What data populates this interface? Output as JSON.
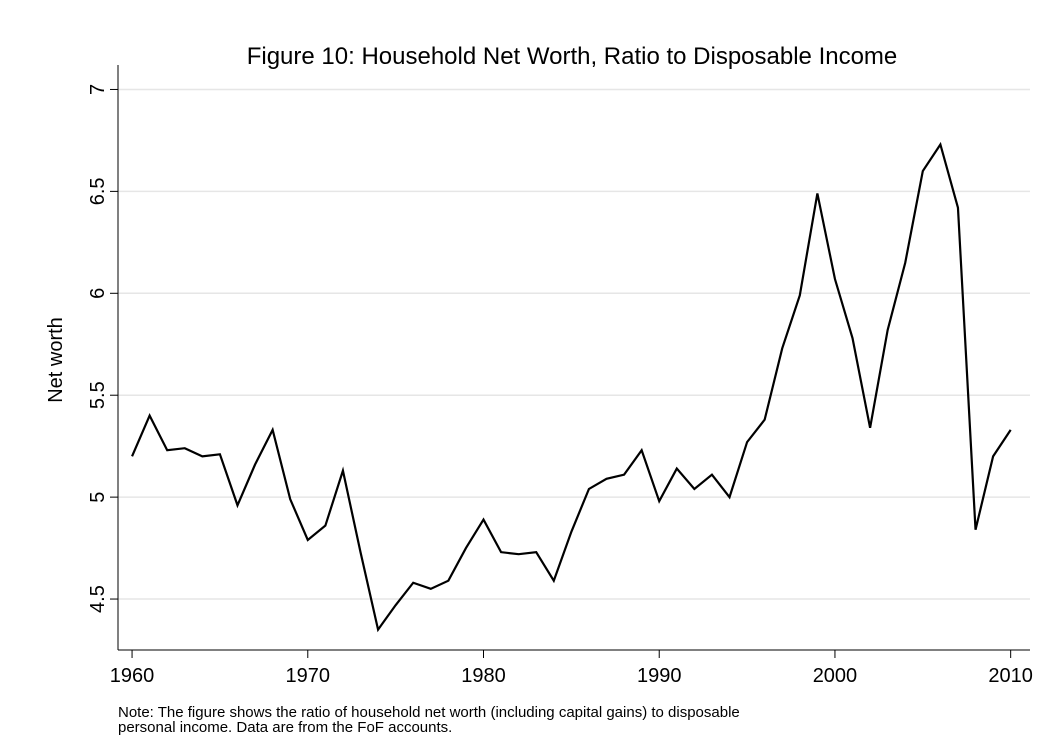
{
  "chart_data": {
    "type": "line",
    "title": "Figure 10: Household Net Worth, Ratio to Disposable Income",
    "y_label": "Net worth",
    "note": [
      "Note: The figure shows the ratio of household net worth (including capital gains) to disposable",
      "personal income. Data are from the FoF accounts."
    ],
    "x": [
      1960,
      1961,
      1962,
      1963,
      1964,
      1965,
      1966,
      1967,
      1968,
      1969,
      1970,
      1971,
      1972,
      1973,
      1974,
      1975,
      1976,
      1977,
      1978,
      1979,
      1980,
      1981,
      1982,
      1983,
      1984,
      1985,
      1986,
      1987,
      1988,
      1989,
      1990,
      1991,
      1992,
      1993,
      1994,
      1995,
      1996,
      1997,
      1998,
      1999,
      2000,
      2001,
      2002,
      2003,
      2004,
      2005,
      2006,
      2007,
      2008,
      2009,
      2010
    ],
    "series": [
      {
        "name": "Net worth",
        "color": "#000000",
        "values": [
          5.2,
          5.4,
          5.23,
          5.24,
          5.2,
          5.21,
          4.96,
          5.16,
          5.33,
          4.99,
          4.79,
          4.86,
          5.13,
          4.73,
          4.35,
          4.47,
          4.58,
          4.55,
          4.59,
          4.75,
          4.89,
          4.73,
          4.72,
          4.73,
          4.59,
          4.83,
          5.04,
          5.09,
          5.11,
          5.23,
          4.98,
          5.14,
          5.04,
          5.11,
          5.0,
          5.27,
          5.38,
          5.73,
          5.99,
          6.49,
          6.07,
          5.78,
          5.34,
          5.82,
          6.15,
          6.6,
          6.73,
          6.42,
          4.84,
          5.2,
          5.33
        ]
      }
    ],
    "xlim": [
      1959.2,
      2011.1
    ],
    "xticks": [
      1960,
      1970,
      1980,
      1990,
      2000,
      2010
    ],
    "ylim": [
      4.25,
      7.12
    ],
    "yticks": [
      4.5,
      5,
      5.5,
      6,
      6.5,
      7
    ],
    "grid": true
  }
}
